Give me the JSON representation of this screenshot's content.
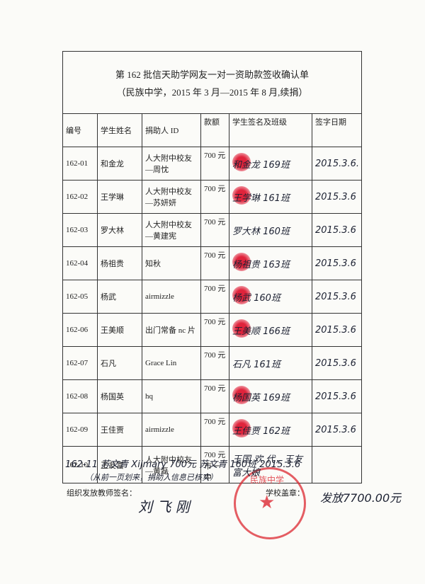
{
  "header": {
    "title": "第 162 批信天助学网友一对一资助款签收确认单",
    "subtitle": "（民族中学，2015 年 3 月—2015 年 8 月,续捐）"
  },
  "table": {
    "headers": [
      "编号",
      "学生姓名",
      "捐助人 ID",
      "款额",
      "学生签名及班级",
      "签字日期"
    ],
    "rows": [
      {
        "id": "162-01",
        "student": "和金龙",
        "donor": "人大附中校友—周忱",
        "amount": "700 元",
        "signature": "和金龙 169班",
        "date": "2015.3.6."
      },
      {
        "id": "162-02",
        "student": "王学琳",
        "donor": "人大附中校友—苏妍妍",
        "amount": "700 元",
        "signature": "王学琳 161班",
        "date": "2015.3.6"
      },
      {
        "id": "162-03",
        "student": "罗大林",
        "donor": "人大附中校友—黄建宪",
        "amount": "700 元",
        "signature": "罗大林 160班",
        "date": "2015.3.6"
      },
      {
        "id": "162-04",
        "student": "杨祖贵",
        "donor": "知秋",
        "amount": "700 元",
        "signature": "杨祖贵 163班",
        "date": "2015.3.6"
      },
      {
        "id": "162-05",
        "student": "杨武",
        "donor": "airmizzle",
        "amount": "700 元",
        "signature": "杨武 160班",
        "date": "2015.3.6"
      },
      {
        "id": "162-06",
        "student": "王美顺",
        "donor": "出门常备 nc 片",
        "amount": "700 元",
        "signature": "王美顺 166班",
        "date": "2015.3.6"
      },
      {
        "id": "162-07",
        "student": "石凡",
        "donor": "Grace Lin",
        "amount": "700 元",
        "signature": "石凡 161班",
        "date": "2015.3.6"
      },
      {
        "id": "162-08",
        "student": "杨国英",
        "donor": "hq",
        "amount": "700 元",
        "signature": "杨国英 169班",
        "date": "2015.3.6"
      },
      {
        "id": "162-09",
        "student": "王佳贾",
        "donor": "airmizzle",
        "amount": "700 元",
        "signature": "王佳贾 162班",
        "date": "2015.3.6"
      },
      {
        "id": "162-10",
        "student": "王友富",
        "donor": "人大附中校友—黄磊",
        "amount": "700 元",
        "amount_note": "市一中",
        "signature": "王国 欢 代，王友富大娘",
        "date": ""
      }
    ]
  },
  "extra": {
    "line": "162-11 苏文青 Xijmary 700元 苏文青 160班 2015.3.6",
    "note": "（从前一页划来，捐助人信息已核实）"
  },
  "footer": {
    "teacher_label": "组织发放教师签名：",
    "teacher_signature": "刘 飞 刚",
    "stamp_label": "学校盖章：",
    "stamp_text": "民族中学",
    "total": "发放7700.00元"
  }
}
